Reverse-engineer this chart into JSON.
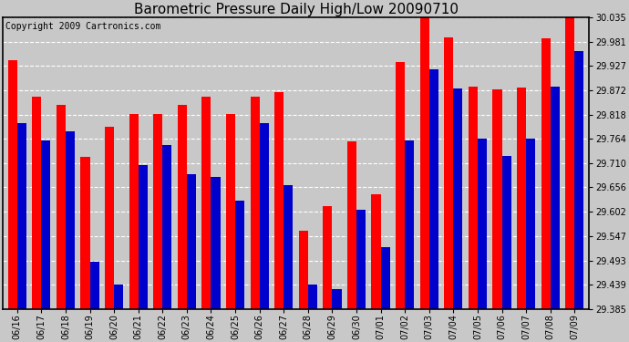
{
  "title": "Barometric Pressure Daily High/Low 20090710",
  "copyright": "Copyright 2009 Cartronics.com",
  "dates": [
    "06/16",
    "06/17",
    "06/18",
    "06/19",
    "06/20",
    "06/21",
    "06/22",
    "06/23",
    "06/24",
    "06/25",
    "06/26",
    "06/27",
    "06/28",
    "06/29",
    "06/30",
    "07/01",
    "07/02",
    "07/03",
    "07/04",
    "07/05",
    "07/06",
    "07/07",
    "07/08",
    "07/09"
  ],
  "highs": [
    29.94,
    29.858,
    29.84,
    29.724,
    29.79,
    29.82,
    29.82,
    29.84,
    29.858,
    29.82,
    29.858,
    29.868,
    29.56,
    29.615,
    29.758,
    29.64,
    29.935,
    30.05,
    29.99,
    29.88,
    29.875,
    29.878,
    29.988,
    30.04
  ],
  "lows": [
    29.8,
    29.76,
    29.78,
    29.49,
    29.44,
    29.705,
    29.75,
    29.686,
    29.68,
    29.626,
    29.8,
    29.66,
    29.44,
    29.43,
    29.605,
    29.522,
    29.76,
    29.92,
    29.876,
    29.764,
    29.726,
    29.764,
    29.88,
    29.96
  ],
  "bar_color_high": "#ff0000",
  "bar_color_low": "#0000cc",
  "background_color": "#c8c8c8",
  "plot_bg_color": "#c8c8c8",
  "grid_color": "#ffffff",
  "ymin": 29.385,
  "ymax": 30.035,
  "yticks": [
    29.385,
    29.439,
    29.493,
    29.547,
    29.602,
    29.656,
    29.71,
    29.764,
    29.818,
    29.872,
    29.927,
    29.981,
    30.035
  ],
  "title_fontsize": 11,
  "copyright_fontsize": 7,
  "tick_fontsize": 7,
  "bar_width": 0.38
}
